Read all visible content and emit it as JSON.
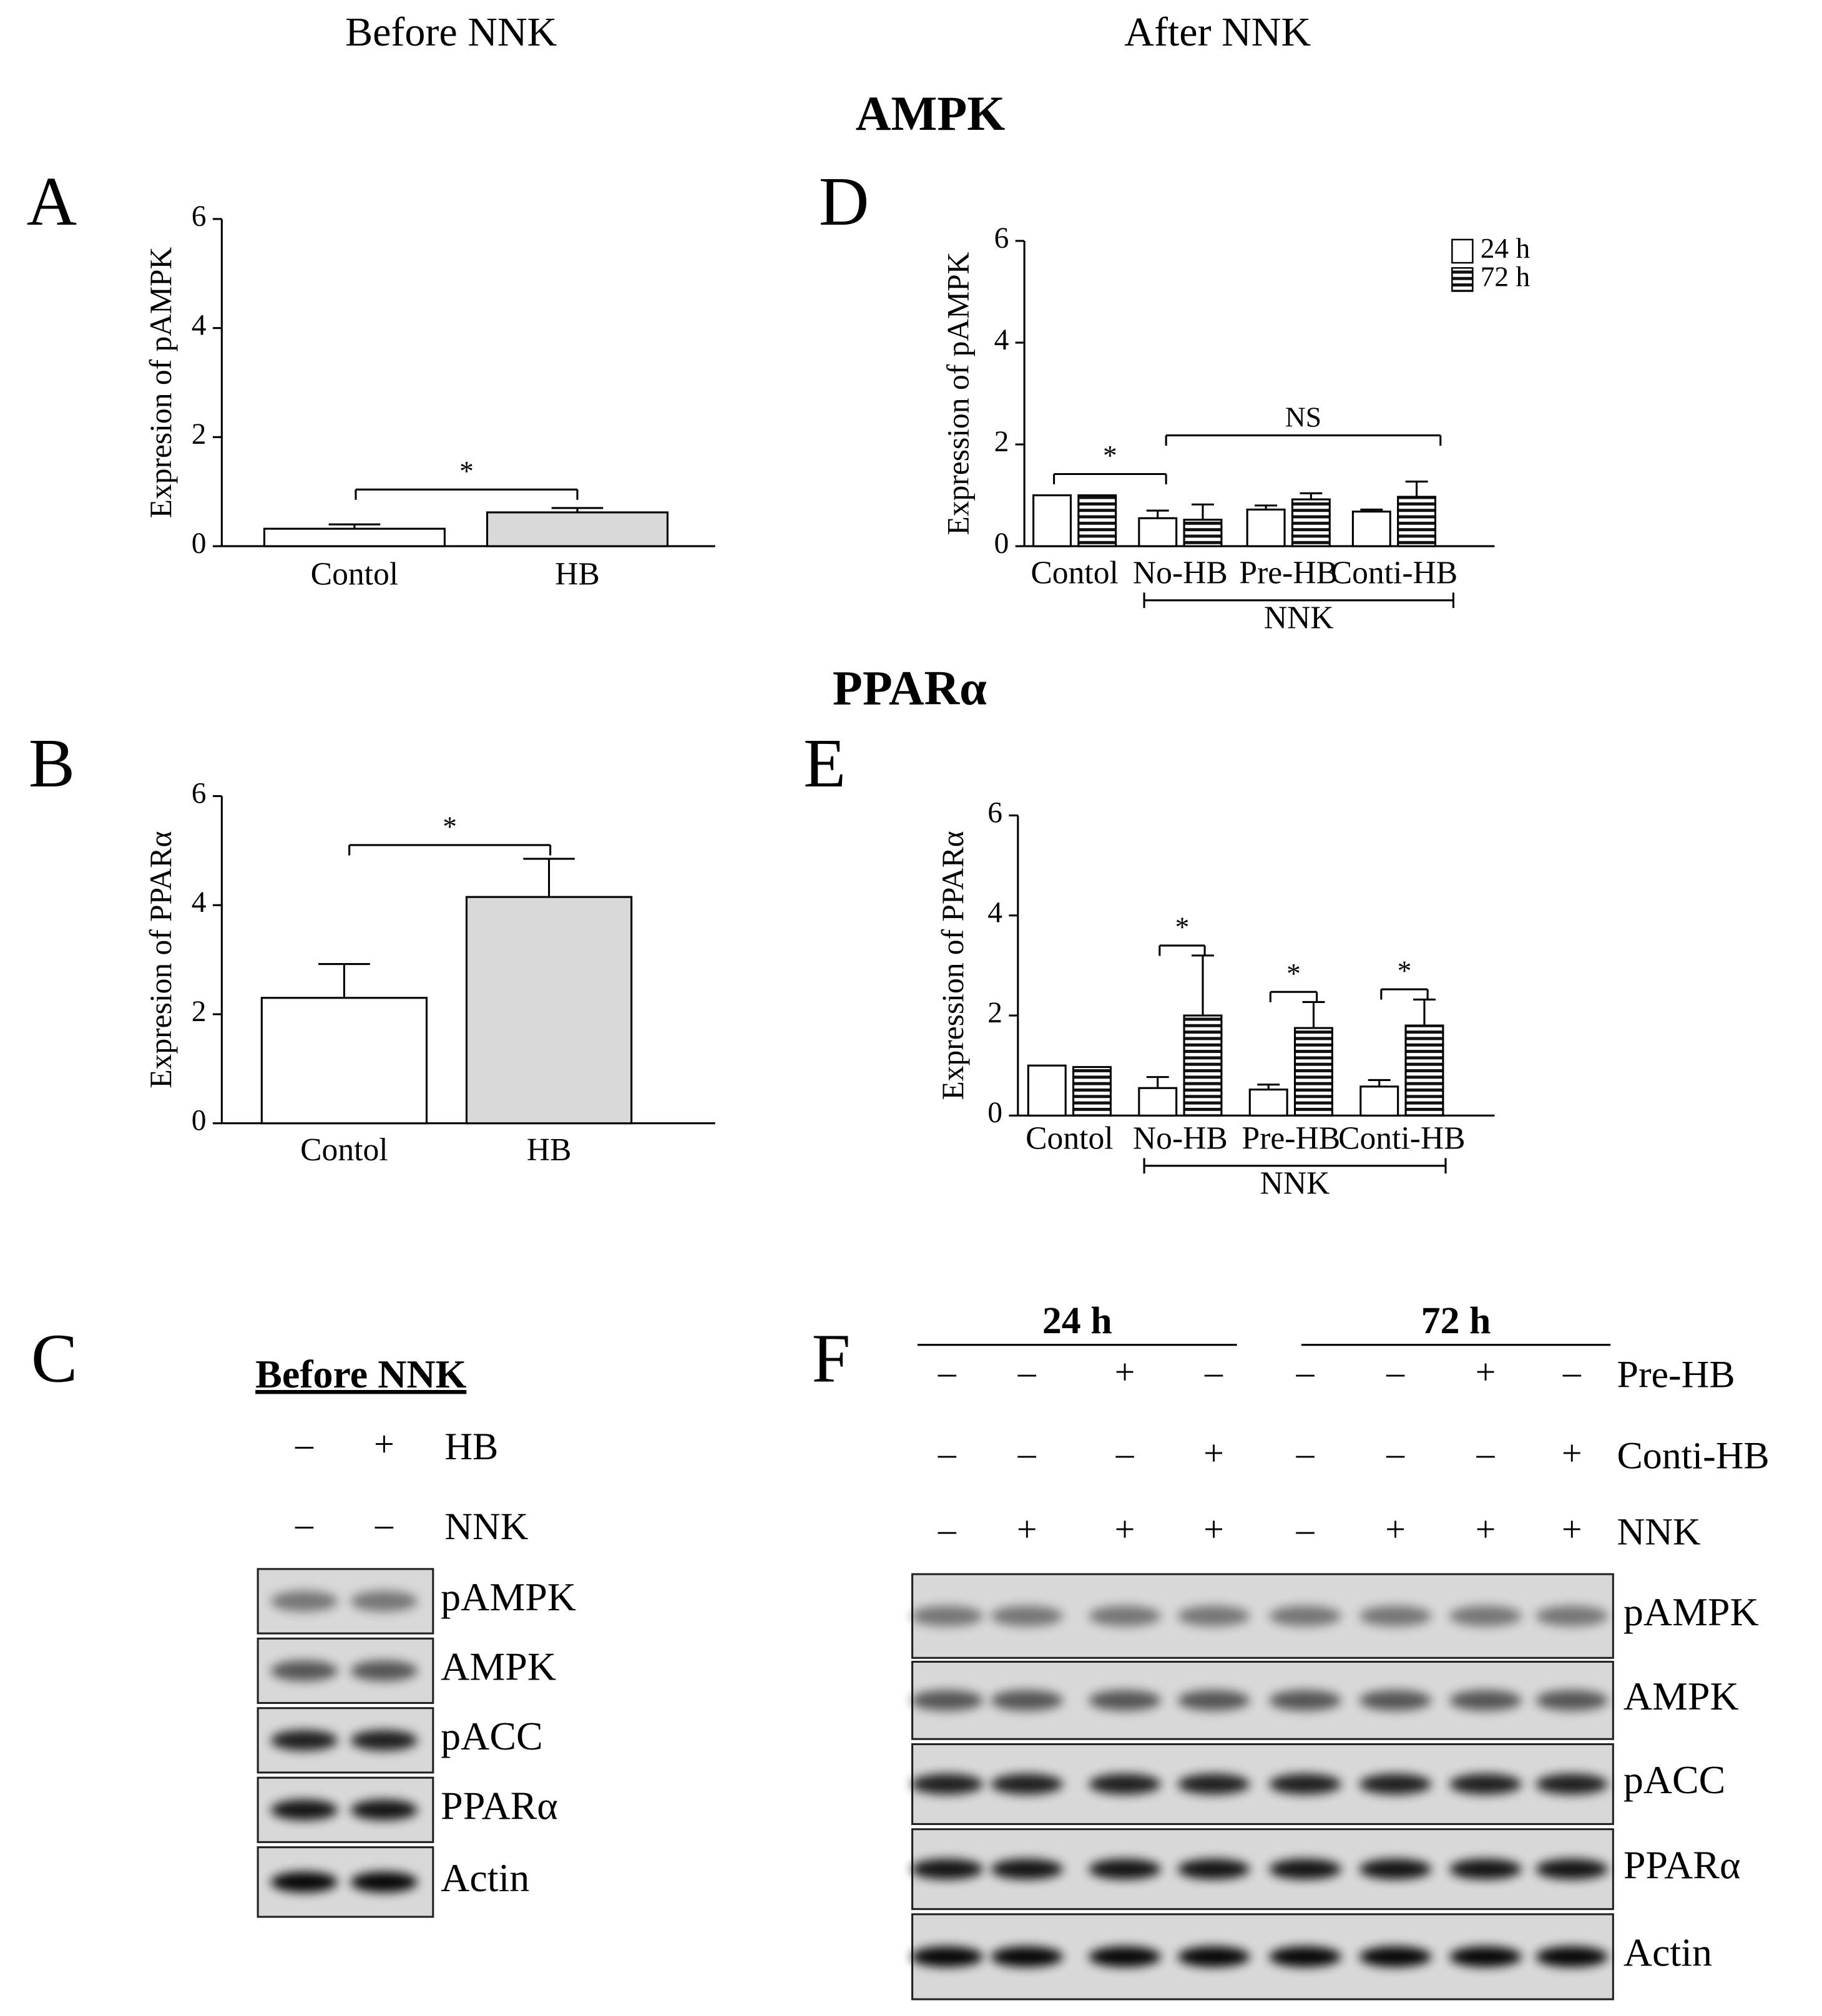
{
  "headers": [
    "Before NNK",
    "After NNK"
  ],
  "section_titles": [
    "AMPK",
    "PPARα"
  ],
  "chart_data": [
    {
      "type": "bar",
      "panel": "A",
      "ylabel": "Expresion of pAMPK",
      "categories": [
        "Contol",
        "HB"
      ],
      "values": [
        0.32,
        0.62
      ],
      "errors": [
        0.08,
        0.08
      ],
      "colors": [
        "#ffffff",
        "#d9d9d9"
      ],
      "ylim": [
        0,
        6
      ],
      "yticks": [
        0,
        2,
        4,
        6
      ],
      "annotations": [
        "*"
      ]
    },
    {
      "type": "bar",
      "panel": "B",
      "ylabel": "Expresion of PPARα",
      "categories": [
        "Contol",
        "HB"
      ],
      "values": [
        2.3,
        4.15
      ],
      "errors": [
        0.62,
        0.7
      ],
      "colors": [
        "#ffffff",
        "#d9d9d9"
      ],
      "ylim": [
        0,
        6
      ],
      "yticks": [
        0,
        2,
        4,
        6
      ],
      "annotations": [
        "*"
      ]
    },
    {
      "type": "grouped_bar",
      "panel": "D",
      "ylabel": "Expression of pAMPK",
      "categories": [
        "Contol",
        "No-HB",
        "Pre-HB",
        "Conti-HB"
      ],
      "group_label": "NNK",
      "legend": true,
      "series": [
        {
          "name": "24 h",
          "fill": "white",
          "values": [
            1.0,
            0.55,
            0.72,
            0.68
          ],
          "errors": [
            0,
            0.15,
            0.08,
            0.04
          ]
        },
        {
          "name": "72 h",
          "fill": "stripes",
          "values": [
            1.0,
            0.52,
            0.92,
            0.97
          ],
          "errors": [
            0,
            0.3,
            0.12,
            0.3
          ]
        }
      ],
      "ylim": [
        0,
        6
      ],
      "yticks": [
        0,
        2,
        4,
        6
      ],
      "annotations": [
        "*",
        "NS"
      ]
    },
    {
      "type": "grouped_bar",
      "panel": "E",
      "ylabel": "Expression of PPARα",
      "categories": [
        "Contol",
        "No-HB",
        "Pre-HB",
        "Conti-HB"
      ],
      "group_label": "NNK",
      "legend": false,
      "series": [
        {
          "name": "24 h",
          "fill": "white",
          "values": [
            1.0,
            0.55,
            0.52,
            0.58
          ],
          "errors": [
            0,
            0.22,
            0.1,
            0.13
          ]
        },
        {
          "name": "72 h",
          "fill": "stripes",
          "values": [
            0.97,
            2.0,
            1.75,
            1.8
          ],
          "errors": [
            0,
            1.2,
            0.52,
            0.52
          ]
        }
      ],
      "ylim": [
        0,
        6
      ],
      "yticks": [
        0,
        2,
        4,
        6
      ],
      "annotations": [
        "*",
        "*",
        "*"
      ]
    }
  ],
  "blots": [
    {
      "panel": "C",
      "title": "Before NNK",
      "treatments": [
        {
          "label": "HB",
          "signs": [
            "–",
            "+"
          ]
        },
        {
          "label": "NNK",
          "signs": [
            "–",
            "–"
          ]
        }
      ],
      "bands": [
        "pAMPK",
        "AMPK",
        "pACC",
        "PPARα",
        "Actin"
      ]
    },
    {
      "panel": "F",
      "groups": [
        "24 h",
        "72 h"
      ],
      "treatments": [
        {
          "label": "Pre-HB",
          "signs": [
            "–",
            "–",
            "+",
            "–",
            "–",
            "–",
            "+",
            "–"
          ]
        },
        {
          "label": "Conti-HB",
          "signs": [
            "–",
            "–",
            "–",
            "+",
            "–",
            "–",
            "–",
            "+"
          ]
        },
        {
          "label": "NNK",
          "signs": [
            "–",
            "+",
            "+",
            "+",
            "–",
            "+",
            "+",
            "+"
          ]
        }
      ],
      "bands": [
        "pAMPK",
        "AMPK",
        "pACC",
        "PPARα",
        "Actin"
      ]
    }
  ]
}
